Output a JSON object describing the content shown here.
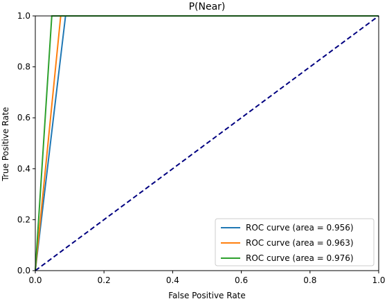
{
  "chart_data": {
    "type": "line",
    "title": "P(Near)",
    "xlabel": "False Positive Rate",
    "ylabel": "True Positive Rate",
    "xlim": [
      0.0,
      1.0
    ],
    "ylim": [
      0.0,
      1.0
    ],
    "x_ticks": [
      "0.0",
      "0.2",
      "0.4",
      "0.6",
      "0.8",
      "1.0"
    ],
    "y_ticks": [
      "0.0",
      "0.2",
      "0.4",
      "0.6",
      "0.8",
      "1.0"
    ],
    "grid": false,
    "legend_position": "lower-right",
    "series": [
      {
        "name": "ROC curve (area = 0.956)",
        "color": "#1f77b4",
        "x": [
          0.0,
          0.088,
          1.0
        ],
        "y": [
          0.0,
          1.0,
          1.0
        ]
      },
      {
        "name": "ROC curve (area = 0.963)",
        "color": "#ff7f0e",
        "x": [
          0.0,
          0.074,
          1.0
        ],
        "y": [
          0.0,
          1.0,
          1.0
        ]
      },
      {
        "name": "ROC curve (area = 0.976)",
        "color": "#2ca02c",
        "x": [
          0.0,
          0.048,
          1.0
        ],
        "y": [
          0.0,
          1.0,
          1.0
        ]
      }
    ],
    "reference_line": {
      "color": "#000080",
      "style": "dashed",
      "x": [
        0.0,
        1.0
      ],
      "y": [
        0.0,
        1.0
      ]
    }
  }
}
